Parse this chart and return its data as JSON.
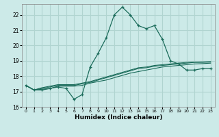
{
  "xlabel": "Humidex (Indice chaleur)",
  "bg_color": "#cceae8",
  "grid_color": "#b0d4d0",
  "line_color": "#1a6b5a",
  "xlim": [
    -0.5,
    23.5
  ],
  "ylim": [
    16,
    22.7
  ],
  "yticks": [
    16,
    17,
    18,
    19,
    20,
    21,
    22
  ],
  "xtick_labels": [
    "0",
    "1",
    "2",
    "3",
    "4",
    "5",
    "6",
    "7",
    "8",
    "9",
    "10",
    "11",
    "12",
    "13",
    "14",
    "15",
    "16",
    "17",
    "18",
    "19",
    "20",
    "21",
    "22",
    "23"
  ],
  "line1_x": [
    0,
    1,
    2,
    3,
    4,
    5,
    6,
    7,
    8,
    9,
    10,
    11,
    12,
    13,
    14,
    15,
    16,
    17,
    18,
    19,
    20,
    21,
    22,
    23
  ],
  "line1_y": [
    17.4,
    17.1,
    17.1,
    17.2,
    17.3,
    17.2,
    16.5,
    16.8,
    18.6,
    19.5,
    20.5,
    22.0,
    22.5,
    22.0,
    21.3,
    21.1,
    21.3,
    20.4,
    19.0,
    18.8,
    18.4,
    18.4,
    18.5,
    18.5
  ],
  "line2_x": [
    0,
    1,
    2,
    3,
    4,
    5,
    6,
    7,
    8,
    9,
    10,
    11,
    12,
    13,
    14,
    15,
    16,
    17,
    18,
    19,
    20,
    21,
    22,
    23
  ],
  "line2_y": [
    17.4,
    17.1,
    17.15,
    17.2,
    17.35,
    17.35,
    17.35,
    17.4,
    17.55,
    17.65,
    17.75,
    17.9,
    18.05,
    18.2,
    18.3,
    18.4,
    18.5,
    18.6,
    18.65,
    18.7,
    18.75,
    18.8,
    18.82,
    18.85
  ],
  "line3_x": [
    0,
    1,
    2,
    3,
    4,
    5,
    6,
    7,
    8,
    9,
    10,
    11,
    12,
    13,
    14,
    15,
    16,
    17,
    18,
    19,
    20,
    21,
    22,
    23
  ],
  "line3_y": [
    17.4,
    17.1,
    17.2,
    17.3,
    17.4,
    17.4,
    17.4,
    17.5,
    17.6,
    17.75,
    17.9,
    18.05,
    18.2,
    18.35,
    18.5,
    18.55,
    18.65,
    18.7,
    18.75,
    18.8,
    18.85,
    18.9,
    18.9,
    18.92
  ],
  "line4_x": [
    0,
    1,
    2,
    3,
    4,
    5,
    6,
    7,
    8,
    9,
    10,
    11,
    12,
    13,
    14,
    15,
    16,
    17,
    18,
    19,
    20,
    21,
    22,
    23
  ],
  "line4_y": [
    17.4,
    17.1,
    17.25,
    17.35,
    17.45,
    17.45,
    17.45,
    17.55,
    17.65,
    17.8,
    17.95,
    18.1,
    18.25,
    18.4,
    18.55,
    18.6,
    18.7,
    18.75,
    18.8,
    18.85,
    18.9,
    18.92,
    18.93,
    18.95
  ]
}
